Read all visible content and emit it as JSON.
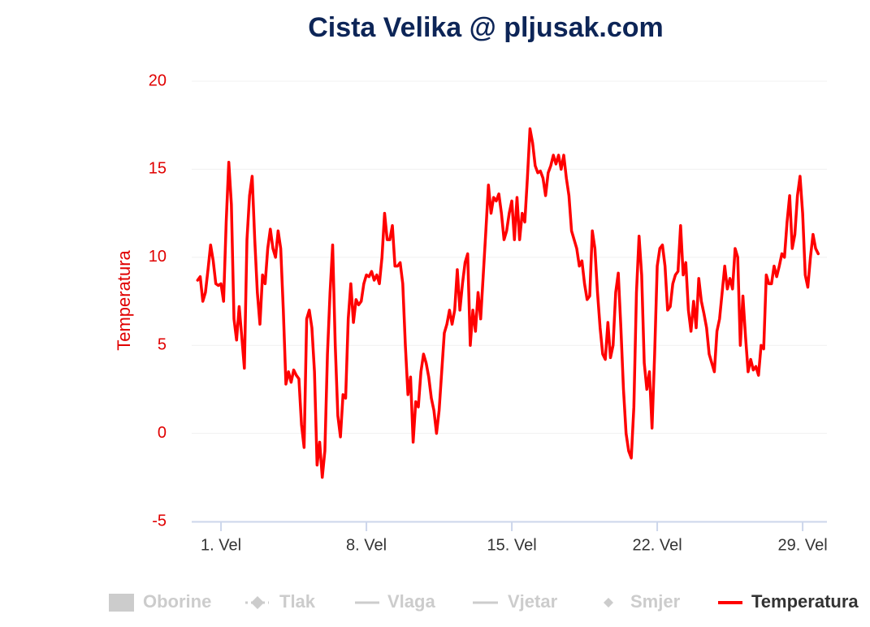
{
  "chart_data": {
    "type": "line",
    "title": "Cista Velika @ pljusak.com",
    "y_axis_label": "Temperatura",
    "x": [
      -0.125,
      0,
      0.125,
      0.25,
      0.375,
      0.5,
      0.625,
      0.75,
      0.875,
      1,
      1.125,
      1.25,
      1.375,
      1.5,
      1.625,
      1.75,
      1.875,
      2,
      2.125,
      2.25,
      2.375,
      2.5,
      2.625,
      2.75,
      2.875,
      3,
      3.125,
      3.25,
      3.375,
      3.5,
      3.625,
      3.75,
      3.875,
      4,
      4.125,
      4.25,
      4.375,
      4.5,
      4.625,
      4.75,
      4.875,
      5,
      5.125,
      5.25,
      5.375,
      5.5,
      5.625,
      5.75,
      5.875,
      6,
      6.125,
      6.25,
      6.375,
      6.5,
      6.625,
      6.75,
      6.875,
      7,
      7.125,
      7.25,
      7.375,
      7.5,
      7.625,
      7.75,
      7.875,
      8,
      8.125,
      8.25,
      8.375,
      8.5,
      8.625,
      8.75,
      8.875,
      9,
      9.125,
      9.25,
      9.375,
      9.5,
      9.625,
      9.75,
      9.875,
      10,
      10.125,
      10.25,
      10.375,
      10.5,
      10.625,
      10.75,
      10.875,
      11,
      11.125,
      11.25,
      11.375,
      11.5,
      11.625,
      11.75,
      11.875,
      12,
      12.125,
      12.25,
      12.375,
      12.5,
      12.625,
      12.75,
      12.875,
      13,
      13.125,
      13.25,
      13.375,
      13.5,
      13.625,
      13.75,
      13.875,
      14,
      14.125,
      14.25,
      14.375,
      14.5,
      14.625,
      14.75,
      14.875,
      15,
      15.125,
      15.25,
      15.375,
      15.5,
      15.625,
      15.75,
      15.875,
      16,
      16.125,
      16.25,
      16.375,
      16.5,
      16.625,
      16.75,
      16.875,
      17,
      17.125,
      17.25,
      17.375,
      17.5,
      17.625,
      17.75,
      17.875,
      18,
      18.125,
      18.25,
      18.375,
      18.5,
      18.625,
      18.75,
      18.875,
      19,
      19.125,
      19.25,
      19.375,
      19.5,
      19.625,
      19.75,
      19.875,
      20,
      20.125,
      20.25,
      20.375,
      20.5,
      20.625,
      20.75,
      20.875,
      21,
      21.125,
      21.25,
      21.375,
      21.5,
      21.625,
      21.75,
      21.875,
      22,
      22.125,
      22.25,
      22.375,
      22.5,
      22.625,
      22.75,
      22.875,
      23,
      23.125,
      23.25,
      23.375,
      23.5,
      23.625,
      23.75,
      23.875,
      24,
      24.125,
      24.25,
      24.375,
      24.5,
      24.625,
      24.75,
      24.875,
      25,
      25.125,
      25.25,
      25.375,
      25.5,
      25.625,
      25.75,
      25.875,
      26,
      26.125,
      26.25,
      26.375,
      26.5,
      26.625,
      26.75,
      26.875,
      27,
      27.125,
      27.25,
      27.375,
      27.5,
      27.625,
      27.75,
      27.875,
      28,
      28.125,
      28.25,
      28.375,
      28.5,
      28.625,
      28.75,
      28.875,
      29,
      29.125,
      29.25,
      29.375,
      29.5,
      29.625,
      29.75
    ],
    "series": [
      {
        "name": "Oborine",
        "visible": false
      },
      {
        "name": "Tlak",
        "visible": false
      },
      {
        "name": "Vlaga",
        "visible": false
      },
      {
        "name": "Vjetar",
        "visible": false
      },
      {
        "name": "Smjer",
        "visible": false
      },
      {
        "name": "Temperatura",
        "color": "#ff0000",
        "visible": true,
        "values": [
          8.7,
          8.9,
          7.5,
          8.0,
          9.3,
          10.7,
          9.8,
          8.5,
          8.4,
          8.5,
          7.5,
          12,
          15.4,
          13,
          6.5,
          5.3,
          7.2,
          5.5,
          3.7,
          11,
          13.5,
          14.6,
          11,
          8,
          6.2,
          9.0,
          8.5,
          10.5,
          11.6,
          10.5,
          10,
          11.5,
          10.5,
          7,
          2.8,
          3.5,
          2.9,
          3.6,
          3.3,
          3.1,
          0.5,
          -0.8,
          6.5,
          7.0,
          6,
          3.5,
          -1.8,
          -0.5,
          -2.5,
          -1,
          4.5,
          8,
          10.7,
          5,
          1.0,
          -0.2,
          2.2,
          2.0,
          6.5,
          8.5,
          6.3,
          7.6,
          7.3,
          7.5,
          8.5,
          9,
          8.9,
          9.2,
          8.7,
          9.0,
          8.5,
          10,
          12.5,
          11,
          11,
          11.8,
          9.5,
          9.5,
          9.7,
          8.5,
          5,
          2.2,
          3.2,
          -0.5,
          1.8,
          1.5,
          3.5,
          4.5,
          4,
          3.2,
          2.0,
          1.3,
          0,
          1.3,
          3.5,
          5.7,
          6.2,
          7,
          6.2,
          7,
          9.3,
          7,
          8.5,
          9.7,
          10.2,
          5,
          7,
          5.8,
          8,
          6.5,
          9,
          11.5,
          14.1,
          12.5,
          13.4,
          13.2,
          13.6,
          12.5,
          11.0,
          11.5,
          12.5,
          13.2,
          11,
          13.4,
          11,
          12.5,
          12,
          14.5,
          17.3,
          16.5,
          15.2,
          14.8,
          14.9,
          14.5,
          13.5,
          14.8,
          15.2,
          15.8,
          15.3,
          15.8,
          15,
          15.8,
          14.5,
          13.5,
          11.5,
          11.0,
          10.5,
          9.5,
          9.8,
          8.5,
          7.6,
          7.8,
          11.5,
          10.5,
          8,
          6,
          4.5,
          4.2,
          6.3,
          4.3,
          5,
          8,
          9.1,
          6,
          2.5,
          0,
          -1,
          -1.4,
          1.5,
          8,
          11.2,
          9,
          4,
          2.5,
          3.5,
          0.3,
          4.5,
          9.5,
          10.5,
          10.7,
          9.5,
          7,
          7.2,
          8.5,
          9,
          9.2,
          11.8,
          9,
          9.7,
          7,
          5.8,
          7.5,
          6.0,
          8.8,
          7.5,
          6.8,
          6,
          4.5,
          4,
          3.5,
          5.8,
          6.5,
          8,
          9.5,
          8.2,
          8.8,
          8.2,
          10.5,
          10,
          5,
          7.8,
          5.5,
          3.5,
          4.2,
          3.6,
          3.8,
          3.3,
          5,
          4.8,
          9.0,
          8.5,
          8.5,
          9.5,
          8.9,
          9.5,
          10.2,
          10.0,
          12,
          13.5,
          10.5,
          11.3,
          13.5,
          14.6,
          12.5,
          9.0,
          8.3,
          10,
          11.3,
          10.5,
          10.2
        ]
      }
    ],
    "xlim": [
      -0.41,
      30.17
    ],
    "xticks": [
      {
        "value": 1,
        "label": "1. Vel"
      },
      {
        "value": 8,
        "label": "8. Vel"
      },
      {
        "value": 15,
        "label": "15. Vel"
      },
      {
        "value": 22,
        "label": "22. Vel"
      },
      {
        "value": 29,
        "label": "29. Vel"
      }
    ],
    "ylim": [
      -5,
      20
    ],
    "yticks": [
      -5,
      0,
      5,
      10,
      15,
      20
    ],
    "grid": true
  }
}
